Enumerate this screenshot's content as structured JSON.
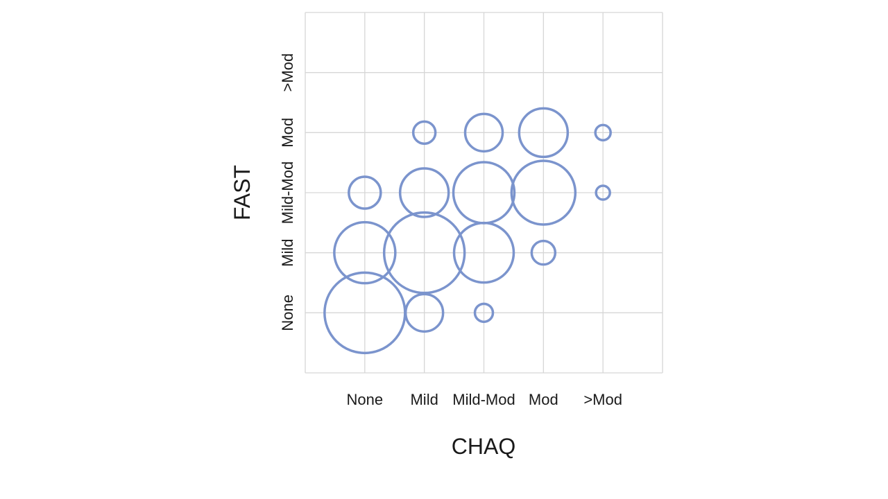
{
  "chart_data": {
    "type": "bubble",
    "title": "",
    "xlabel": "CHAQ",
    "ylabel": "FAST",
    "x_categories": [
      "None",
      "Mild",
      "Mild-Mod",
      "Mod",
      ">Mod"
    ],
    "y_categories": [
      "None",
      "Mild",
      "Mild-Mod",
      "Mod",
      ">Mod"
    ],
    "points": [
      {
        "x": "None",
        "y": "None",
        "radius_px": 58
      },
      {
        "x": "Mild",
        "y": "None",
        "radius_px": 27
      },
      {
        "x": "Mild-Mod",
        "y": "None",
        "radius_px": 13
      },
      {
        "x": "None",
        "y": "Mild",
        "radius_px": 44
      },
      {
        "x": "Mild",
        "y": "Mild",
        "radius_px": 58
      },
      {
        "x": "Mild-Mod",
        "y": "Mild",
        "radius_px": 43
      },
      {
        "x": "Mod",
        "y": "Mild",
        "radius_px": 17
      },
      {
        "x": "None",
        "y": "Mild-Mod",
        "radius_px": 23
      },
      {
        "x": "Mild",
        "y": "Mild-Mod",
        "radius_px": 35
      },
      {
        "x": "Mild-Mod",
        "y": "Mild-Mod",
        "radius_px": 44
      },
      {
        "x": "Mod",
        "y": "Mild-Mod",
        "radius_px": 46
      },
      {
        "x": ">Mod",
        "y": "Mild-Mod",
        "radius_px": 10
      },
      {
        "x": "Mild",
        "y": "Mod",
        "radius_px": 16
      },
      {
        "x": "Mild-Mod",
        "y": "Mod",
        "radius_px": 27
      },
      {
        "x": "Mod",
        "y": "Mod",
        "radius_px": 35
      },
      {
        "x": ">Mod",
        "y": "Mod",
        "radius_px": 11
      }
    ],
    "bubble_stroke_color": "#7B94CD",
    "grid_color": "#D6D6D6",
    "grid": true,
    "legend": "none"
  }
}
